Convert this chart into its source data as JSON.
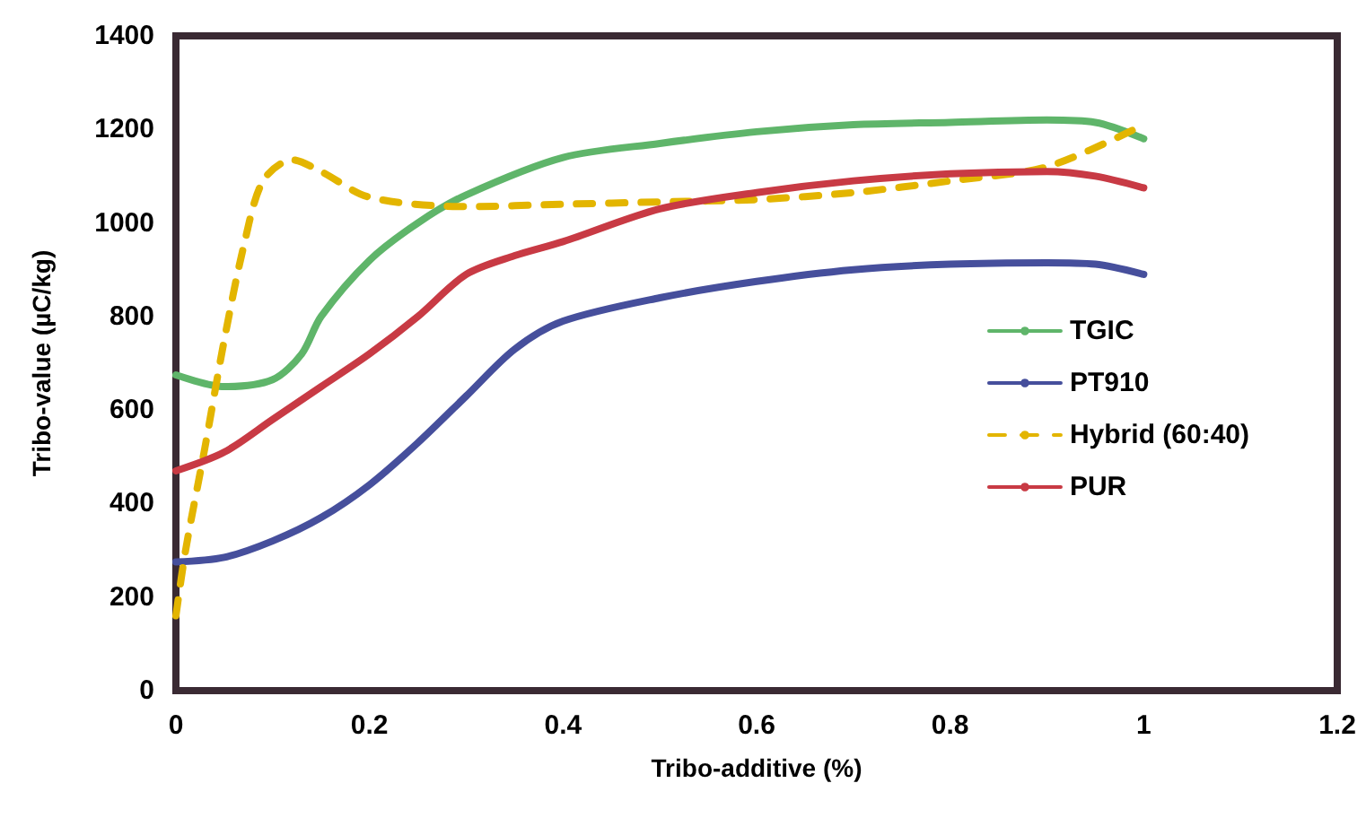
{
  "chart_data": {
    "type": "line",
    "xlabel": "Tribo-additive (%)",
    "ylabel": "Tribo-value (µC/kg)",
    "xlim": [
      0,
      1.2
    ],
    "xticks": [
      0,
      0.2,
      0.4,
      0.6,
      0.8,
      1,
      1.2
    ],
    "ylim": [
      0,
      1400
    ],
    "yticks": [
      0,
      200,
      400,
      600,
      800,
      1000,
      1200,
      1400
    ],
    "grid": false,
    "legend": "right",
    "marker": "none",
    "series": [
      {
        "name": "TGIC",
        "color": "#5fb56a",
        "line_style": "solid",
        "x": [
          0,
          0.05,
          0.1,
          0.13,
          0.15,
          0.2,
          0.25,
          0.3,
          0.4,
          0.5,
          0.6,
          0.7,
          0.8,
          0.9,
          0.95,
          1
        ],
        "values": [
          675,
          650,
          665,
          720,
          800,
          920,
          1000,
          1060,
          1140,
          1170,
          1195,
          1210,
          1215,
          1220,
          1215,
          1180
        ]
      },
      {
        "name": "PT910",
        "color": "#464f9c",
        "line_style": "solid",
        "x": [
          0,
          0.05,
          0.1,
          0.15,
          0.2,
          0.25,
          0.3,
          0.35,
          0.4,
          0.5,
          0.6,
          0.7,
          0.8,
          0.9,
          0.95,
          1
        ],
        "values": [
          275,
          285,
          320,
          370,
          440,
          530,
          630,
          730,
          790,
          840,
          875,
          900,
          912,
          915,
          912,
          890
        ]
      },
      {
        "name": "Hybrid (60:40)",
        "color": "#e3b500",
        "line_style": "dashed",
        "x": [
          0,
          0.01,
          0.03,
          0.05,
          0.07,
          0.09,
          0.12,
          0.15,
          0.2,
          0.3,
          0.4,
          0.5,
          0.6,
          0.7,
          0.8,
          0.9,
          1
        ],
        "values": [
          160,
          300,
          520,
          750,
          950,
          1090,
          1135,
          1110,
          1055,
          1035,
          1040,
          1045,
          1050,
          1065,
          1090,
          1120,
          1210
        ]
      },
      {
        "name": "PUR",
        "color": "#c83a44",
        "line_style": "solid",
        "x": [
          0,
          0.05,
          0.1,
          0.15,
          0.2,
          0.25,
          0.3,
          0.35,
          0.4,
          0.5,
          0.6,
          0.7,
          0.8,
          0.9,
          0.95,
          1
        ],
        "values": [
          470,
          510,
          580,
          650,
          720,
          800,
          890,
          930,
          960,
          1030,
          1065,
          1090,
          1105,
          1110,
          1100,
          1075
        ]
      }
    ]
  }
}
